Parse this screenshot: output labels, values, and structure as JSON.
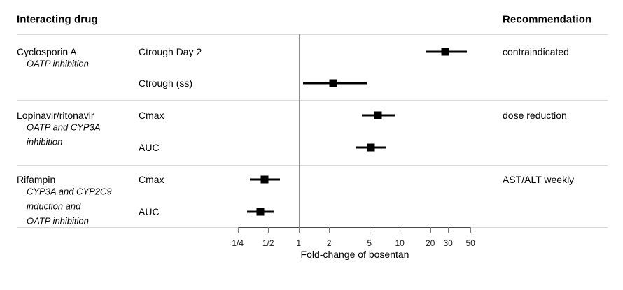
{
  "header": {
    "left": "Interacting drug",
    "right": "Recommendation"
  },
  "chart_data": {
    "type": "forest",
    "xscale": "log10",
    "xlabel": "Fold-change of bosentan",
    "x_reference": 1,
    "xlim": [
      0.25,
      50
    ],
    "xticks": [
      {
        "label": "1/4",
        "value": 0.25
      },
      {
        "label": "1/2",
        "value": 0.5
      },
      {
        "label": "1",
        "value": 1
      },
      {
        "label": "2",
        "value": 2
      },
      {
        "label": "5",
        "value": 5
      },
      {
        "label": "10",
        "value": 10
      },
      {
        "label": "20",
        "value": 20
      },
      {
        "label": "30",
        "value": 30
      },
      {
        "label": "50",
        "value": 50
      }
    ],
    "groups": [
      {
        "drug": "Cyclosporin A",
        "mechanism_lines": [
          "OATP inhibition"
        ],
        "recommendation": "contraindicated",
        "studies": [
          {
            "label": "Ctrough Day 2",
            "estimate": 28,
            "ci_low": 18,
            "ci_high": 46
          },
          {
            "label": "Ctrough (ss)",
            "estimate": 2.2,
            "ci_low": 1.1,
            "ci_high": 4.7
          }
        ]
      },
      {
        "drug": "Lopinavir/ritonavir",
        "mechanism_lines": [
          "OATP and CYP3A",
          "inhibition"
        ],
        "recommendation": "dose reduction",
        "studies": [
          {
            "label": "Cmax",
            "estimate": 6.1,
            "ci_low": 4.2,
            "ci_high": 9.1
          },
          {
            "label": "AUC",
            "estimate": 5.2,
            "ci_low": 3.7,
            "ci_high": 7.3
          }
        ]
      },
      {
        "drug": "Rifampin",
        "mechanism_lines": [
          "CYP3A and CYP2C9",
          "induction and",
          "OATP inhibition"
        ],
        "recommendation": "AST/ALT weekly",
        "studies": [
          {
            "label": "Cmax",
            "estimate": 0.46,
            "ci_low": 0.33,
            "ci_high": 0.65
          },
          {
            "label": "AUC",
            "estimate": 0.42,
            "ci_low": 0.31,
            "ci_high": 0.57
          }
        ]
      }
    ]
  }
}
